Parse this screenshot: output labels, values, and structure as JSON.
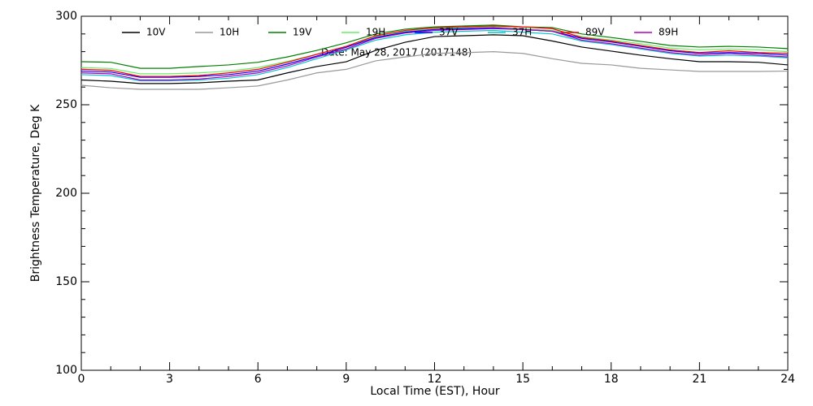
{
  "chart_data": {
    "type": "line",
    "xlabel": "Local Time (EST), Hour",
    "ylabel": "Brightness Temperature, Deg K",
    "annotation": "Date: May 28, 2017 (2017148)",
    "xlim": [
      0,
      24
    ],
    "ylim": [
      100,
      300
    ],
    "xticks": [
      0,
      3,
      6,
      9,
      12,
      15,
      18,
      21,
      24
    ],
    "yticks": [
      100,
      150,
      200,
      250,
      300
    ],
    "xminorticks": [
      1,
      2,
      4,
      5,
      7,
      8,
      10,
      11,
      13,
      14,
      16,
      17,
      19,
      20,
      22,
      23
    ],
    "yminorticks": [
      110,
      120,
      130,
      140,
      160,
      170,
      180,
      190,
      210,
      220,
      230,
      240,
      260,
      270,
      280,
      290
    ],
    "x": [
      0,
      1,
      2,
      3,
      4,
      5,
      6,
      7,
      8,
      9,
      10,
      11,
      12,
      13,
      14,
      15,
      16,
      17,
      18,
      19,
      20,
      21,
      22,
      23,
      24
    ],
    "series": [
      {
        "name": "10V",
        "color": "#000000",
        "values": [
          264,
          263.3,
          262,
          262,
          262.4,
          263.3,
          264,
          268,
          271.6,
          274.3,
          280.7,
          285.3,
          288.5,
          289,
          289.5,
          289,
          286,
          282.6,
          280.3,
          278,
          276,
          274.3,
          274.3,
          274,
          272.5
        ]
      },
      {
        "name": "10H",
        "color": "#999999",
        "values": [
          261,
          259.6,
          258.7,
          258.7,
          258.7,
          259.6,
          260.6,
          264,
          268,
          270,
          274.8,
          277,
          279,
          279.4,
          280,
          279,
          276,
          273.4,
          272.5,
          270.6,
          269.7,
          268.8,
          268.8,
          268.8,
          269
        ]
      },
      {
        "name": "19V",
        "color": "#008000",
        "values": [
          274.3,
          274,
          270.6,
          270.6,
          271.6,
          272.5,
          274,
          277,
          280.7,
          285,
          290,
          292.7,
          294,
          294.5,
          295,
          294,
          293.6,
          290,
          288,
          285.8,
          283.5,
          282.6,
          283,
          282.6,
          281.7
        ]
      },
      {
        "name": "19H",
        "color": "#66ee66",
        "values": [
          271,
          270.5,
          267.5,
          267.5,
          268,
          269,
          271,
          274.5,
          278.5,
          283,
          288.5,
          291.5,
          293,
          293.5,
          294,
          293,
          292,
          288.5,
          286.5,
          284.5,
          282,
          281,
          281.5,
          281,
          280
        ]
      },
      {
        "name": "37V",
        "color": "#0000ff",
        "values": [
          269,
          268.5,
          265.5,
          265.5,
          266,
          267,
          269,
          273,
          277.5,
          282.5,
          288,
          291,
          292.5,
          293,
          293.5,
          292.5,
          291.5,
          287.5,
          285.5,
          283,
          280.5,
          279,
          279.5,
          279,
          278
        ]
      },
      {
        "name": "37H",
        "color": "#00c8c8",
        "values": [
          267,
          266.5,
          263.5,
          263.5,
          264,
          265,
          267,
          271,
          276,
          281,
          286.5,
          289.5,
          291,
          291.5,
          292,
          291,
          290,
          286,
          284,
          281.5,
          279,
          277.5,
          278,
          277.5,
          276.5
        ]
      },
      {
        "name": "89V",
        "color": "#ff0000",
        "values": [
          270,
          269.5,
          266,
          266,
          266.5,
          268,
          270,
          274,
          278.5,
          283,
          289,
          292,
          293.5,
          294,
          294.5,
          294,
          293,
          288,
          286,
          283.5,
          281,
          279.5,
          280.5,
          279.5,
          279
        ]
      },
      {
        "name": "89H",
        "color": "#b000c0",
        "values": [
          268,
          267.5,
          264,
          264,
          264.5,
          266,
          268,
          272,
          277,
          281.5,
          287.5,
          290.5,
          292,
          292.5,
          293,
          292.5,
          291.5,
          286.5,
          284.5,
          282,
          279.5,
          278,
          279,
          278,
          277
        ]
      }
    ]
  }
}
